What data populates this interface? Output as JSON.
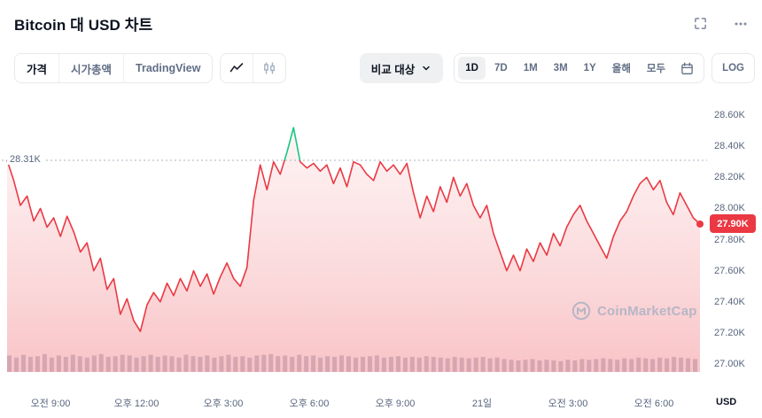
{
  "header": {
    "title": "Bitcoin 대 USD 차트",
    "icons": [
      "fullscreen",
      "more-options"
    ]
  },
  "toolbar": {
    "view_tabs": [
      {
        "label": "가격",
        "active": true
      },
      {
        "label": "시가총액",
        "active": false
      },
      {
        "label": "TradingView",
        "active": false
      }
    ],
    "chart_types": [
      {
        "name": "line-chart",
        "active": true
      },
      {
        "name": "candlestick-chart",
        "active": false
      }
    ],
    "compare_label": "비교 대상",
    "ranges": [
      {
        "label": "1D",
        "active": true
      },
      {
        "label": "7D",
        "active": false
      },
      {
        "label": "1M",
        "active": false
      },
      {
        "label": "3M",
        "active": false
      },
      {
        "label": "1Y",
        "active": false
      },
      {
        "label": "올해",
        "active": false
      },
      {
        "label": "모두",
        "active": false
      }
    ],
    "log_label": "LOG"
  },
  "chart": {
    "open_label": "28.31K",
    "last_label": "27.90K",
    "unit_label": "USD",
    "watermark": "CoinMarketCap",
    "colors": {
      "down": "#ea3943",
      "up": "#16c784",
      "volume": "#ccd3de",
      "open_line": "#a8b1c2",
      "axis_text": "#58667e"
    }
  },
  "chart_data": {
    "type": "line",
    "title": "Bitcoin 대 USD 차트",
    "ylabel": "USD",
    "ylim": [
      26.99,
      28.77
    ],
    "open": 28.31,
    "last": 27.9,
    "y_ticks": [
      28.6,
      28.4,
      28.2,
      28.0,
      27.8,
      27.6,
      27.4,
      27.2,
      27.0
    ],
    "y_tick_labels": [
      "28.60K",
      "28.40K",
      "28.20K",
      "28.00K",
      "27.80K",
      "27.60K",
      "27.40K",
      "27.20K",
      "27.00K"
    ],
    "x_tick_labels": [
      "오전 9:00",
      "오후 12:00",
      "오후 3:00",
      "오후 6:00",
      "오후 9:00",
      "21일",
      "오전 3:00",
      "오전 6:00"
    ],
    "values": [
      28.31,
      28.18,
      28.02,
      28.08,
      27.92,
      28.0,
      27.88,
      27.94,
      27.82,
      27.95,
      27.85,
      27.72,
      27.78,
      27.6,
      27.68,
      27.48,
      27.55,
      27.32,
      27.42,
      27.28,
      27.21,
      27.38,
      27.46,
      27.4,
      27.52,
      27.44,
      27.55,
      27.47,
      27.6,
      27.5,
      27.58,
      27.45,
      27.56,
      27.65,
      27.55,
      27.5,
      27.62,
      28.05,
      28.28,
      28.12,
      28.3,
      28.22,
      28.36,
      28.52,
      28.3,
      28.26,
      28.29,
      28.24,
      28.28,
      28.16,
      28.26,
      28.14,
      28.3,
      28.28,
      28.22,
      28.18,
      28.3,
      28.24,
      28.28,
      28.22,
      28.29,
      28.1,
      27.94,
      28.08,
      27.98,
      28.14,
      28.04,
      28.2,
      28.08,
      28.16,
      28.02,
      27.94,
      28.02,
      27.84,
      27.72,
      27.6,
      27.7,
      27.6,
      27.74,
      27.66,
      27.78,
      27.7,
      27.84,
      27.76,
      27.88,
      27.96,
      28.02,
      27.92,
      27.84,
      27.76,
      27.68,
      27.82,
      27.92,
      27.98,
      28.08,
      28.16,
      28.2,
      28.12,
      28.18,
      28.04,
      27.96,
      28.1,
      28.02,
      27.94,
      27.9
    ],
    "volume_relative": [
      0.85,
      0.7,
      0.9,
      0.75,
      0.8,
      0.95,
      0.7,
      0.85,
      0.75,
      0.9,
      0.8,
      0.7,
      0.85,
      0.95,
      0.75,
      0.8,
      0.9,
      0.85,
      0.7,
      0.8,
      0.9,
      0.75,
      0.85,
      0.8,
      0.7,
      0.9,
      0.8,
      0.75,
      0.85,
      0.7,
      0.8,
      0.9,
      0.75,
      0.8,
      0.7,
      0.85,
      0.9,
      0.95,
      0.8,
      0.85,
      0.75,
      0.9,
      0.8,
      0.85,
      0.7,
      0.8,
      0.75,
      0.85,
      0.8,
      0.7,
      0.75,
      0.8,
      0.85,
      0.7,
      0.75,
      0.8,
      0.7,
      0.75,
      0.7,
      0.8,
      0.75,
      0.7,
      0.65,
      0.75,
      0.7,
      0.65,
      0.7,
      0.75,
      0.65,
      0.7,
      0.6,
      0.55,
      0.5,
      0.55,
      0.6,
      0.5,
      0.55,
      0.5,
      0.45,
      0.55,
      0.5,
      0.6,
      0.55,
      0.6,
      0.65,
      0.6,
      0.55,
      0.65,
      0.6,
      0.7,
      0.65,
      0.6,
      0.7,
      0.65,
      0.75,
      0.7,
      0.65,
      0.6
    ]
  }
}
